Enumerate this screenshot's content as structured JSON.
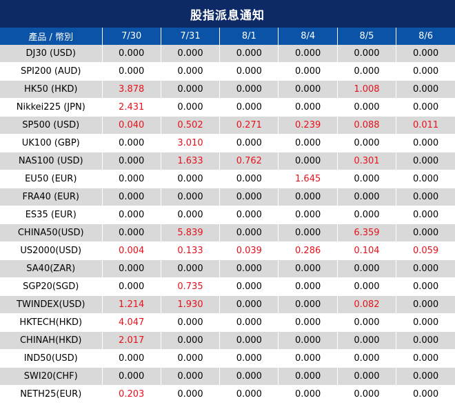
{
  "title": "股指派息通知",
  "header": {
    "product": "產品 / 幣別",
    "dates": [
      "7/30",
      "7/31",
      "8/1",
      "8/4",
      "8/5",
      "8/6"
    ]
  },
  "rows": [
    {
      "name": "DJ30 (USD)",
      "values": [
        "0.000",
        "0.000",
        "0.000",
        "0.000",
        "0.000",
        "0.000"
      ]
    },
    {
      "name": "SPI200 (AUD)",
      "values": [
        "0.000",
        "0.000",
        "0.000",
        "0.000",
        "0.000",
        "0.000"
      ]
    },
    {
      "name": "HK50 (HKD)",
      "values": [
        "3.878",
        "0.000",
        "0.000",
        "0.000",
        "1.008",
        "0.000"
      ]
    },
    {
      "name": "Nikkei225 (JPN)",
      "values": [
        "2.431",
        "0.000",
        "0.000",
        "0.000",
        "0.000",
        "0.000"
      ]
    },
    {
      "name": "SP500 (USD)",
      "values": [
        "0.040",
        "0.502",
        "0.271",
        "0.239",
        "0.088",
        "0.011"
      ]
    },
    {
      "name": "UK100 (GBP)",
      "values": [
        "0.000",
        "3.010",
        "0.000",
        "0.000",
        "0.000",
        "0.000"
      ]
    },
    {
      "name": "NAS100 (USD)",
      "values": [
        "0.000",
        "1.633",
        "0.762",
        "0.000",
        "0.301",
        "0.000"
      ]
    },
    {
      "name": "EU50 (EUR)",
      "values": [
        "0.000",
        "0.000",
        "0.000",
        "1.645",
        "0.000",
        "0.000"
      ]
    },
    {
      "name": "FRA40 (EUR)",
      "values": [
        "0.000",
        "0.000",
        "0.000",
        "0.000",
        "0.000",
        "0.000"
      ]
    },
    {
      "name": "ES35 (EUR)",
      "values": [
        "0.000",
        "0.000",
        "0.000",
        "0.000",
        "0.000",
        "0.000"
      ]
    },
    {
      "name": "CHINA50(USD)",
      "values": [
        "0.000",
        "5.839",
        "0.000",
        "0.000",
        "6.359",
        "0.000"
      ]
    },
    {
      "name": "US2000(USD)",
      "values": [
        "0.004",
        "0.133",
        "0.039",
        "0.286",
        "0.104",
        "0.059"
      ]
    },
    {
      "name": "SA40(ZAR)",
      "values": [
        "0.000",
        "0.000",
        "0.000",
        "0.000",
        "0.000",
        "0.000"
      ]
    },
    {
      "name": "SGP20(SGD)",
      "values": [
        "0.000",
        "0.735",
        "0.000",
        "0.000",
        "0.000",
        "0.000"
      ]
    },
    {
      "name": "TWINDEX(USD)",
      "values": [
        "1.214",
        "1.930",
        "0.000",
        "0.000",
        "0.082",
        "0.000"
      ]
    },
    {
      "name": "HKTECH(HKD)",
      "values": [
        "4.047",
        "0.000",
        "0.000",
        "0.000",
        "0.000",
        "0.000"
      ]
    },
    {
      "name": "CHINAH(HKD)",
      "values": [
        "2.017",
        "0.000",
        "0.000",
        "0.000",
        "0.000",
        "0.000"
      ]
    },
    {
      "name": "IND50(USD)",
      "values": [
        "0.000",
        "0.000",
        "0.000",
        "0.000",
        "0.000",
        "0.000"
      ]
    },
    {
      "name": "SWI20(CHF)",
      "values": [
        "0.000",
        "0.000",
        "0.000",
        "0.000",
        "0.000",
        "0.000"
      ]
    },
    {
      "name": "NETH25(EUR)",
      "values": [
        "0.203",
        "0.000",
        "0.000",
        "0.000",
        "0.000",
        "0.000"
      ]
    }
  ],
  "colors": {
    "title_bg": "#0d2a66",
    "header_bg": "#0a53a6",
    "stripe": "#d9d9d9",
    "nonzero": "#e8101a"
  }
}
